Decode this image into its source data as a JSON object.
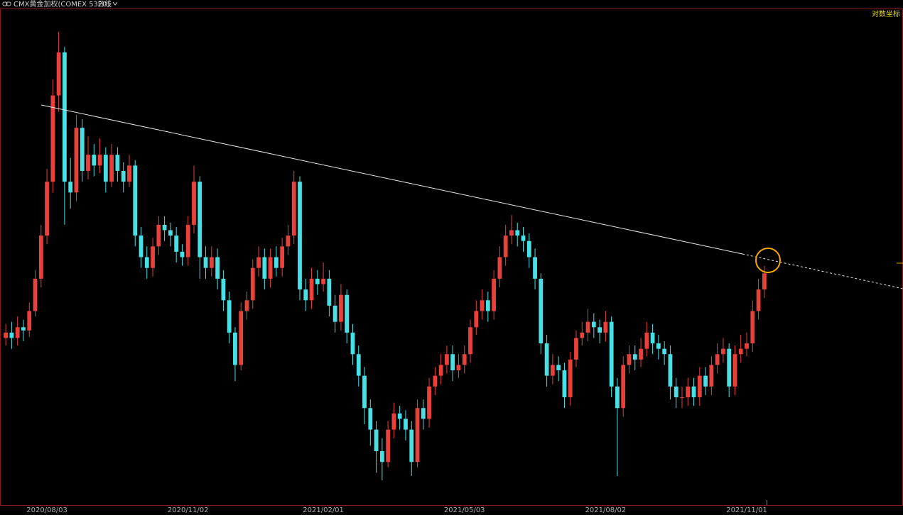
{
  "chart_data": {
    "type": "candlestick",
    "title": "CMX黄金加权(COMEX 5320)",
    "period": "日线",
    "scale_button": "对数坐标",
    "up_color": "#e8413c",
    "down_color": "#48e0e4",
    "ylim": [
      1650,
      2110
    ],
    "categories": [
      null,
      null,
      null,
      null,
      null,
      null,
      null,
      "2020/08/03",
      null,
      null,
      null,
      null,
      null,
      null,
      null,
      null,
      null,
      null,
      null,
      null,
      null,
      null,
      null,
      null,
      null,
      null,
      null,
      null,
      null,
      null,
      null,
      "2020/11/02",
      null,
      null,
      null,
      null,
      null,
      null,
      null,
      null,
      null,
      null,
      null,
      null,
      null,
      null,
      null,
      null,
      null,
      null,
      null,
      null,
      null,
      null,
      "2021/02/01",
      null,
      null,
      null,
      null,
      null,
      null,
      null,
      null,
      null,
      null,
      null,
      null,
      null,
      null,
      null,
      null,
      null,
      null,
      null,
      null,
      null,
      null,
      null,
      "2021/05/03",
      null,
      null,
      null,
      null,
      null,
      null,
      null,
      null,
      null,
      null,
      null,
      null,
      null,
      null,
      null,
      null,
      null,
      null,
      null,
      null,
      null,
      null,
      null,
      "2021/08/02",
      null,
      null,
      null,
      null,
      null,
      null,
      null,
      null,
      null,
      null,
      null,
      null,
      null,
      null,
      null,
      null,
      null,
      null,
      null,
      null,
      null,
      null,
      null,
      "2021/11/01",
      null,
      null,
      null
    ],
    "open": [
      1805,
      1810,
      1805,
      1815,
      1812,
      1830,
      1860,
      1900,
      1950,
      2030,
      2070,
      1950,
      1940,
      2000,
      1960,
      1975,
      1965,
      1975,
      1950,
      1975,
      1960,
      1950,
      1965,
      1900,
      1880,
      1870,
      1890,
      1910,
      1905,
      1900,
      1885,
      1880,
      1910,
      1950,
      1880,
      1870,
      1880,
      1860,
      1840,
      1810,
      1780,
      1830,
      1840,
      1870,
      1880,
      1860,
      1880,
      1870,
      1890,
      1900,
      1950,
      1850,
      1840,
      1860,
      1855,
      1860,
      1835,
      1820,
      1845,
      1810,
      1790,
      1770,
      1740,
      1720,
      1700,
      1690,
      1720,
      1735,
      1730,
      1720,
      1690,
      1740,
      1730,
      1760,
      1770,
      1780,
      1790,
      1775,
      1780,
      1790,
      1815,
      1830,
      1840,
      1830,
      1860,
      1880,
      1900,
      1905,
      1900,
      1895,
      1880,
      1860,
      1800,
      1770,
      1780,
      1775,
      1750,
      1785,
      1805,
      1810,
      1820,
      1815,
      1810,
      1820,
      1760,
      1740,
      1780,
      1790,
      1785,
      1795,
      1810,
      1800,
      1795,
      1790,
      1760,
      1750,
      1750,
      1760,
      1750,
      1770,
      1760,
      1780,
      1790,
      1795,
      1760,
      1790,
      1795,
      1800,
      1830,
      1850
    ],
    "high": [
      1818,
      1820,
      1825,
      1822,
      1838,
      1868,
      1910,
      1962,
      2045,
      2089,
      2075,
      1972,
      2012,
      2008,
      1992,
      1985,
      1990,
      1982,
      1985,
      1982,
      1968,
      1975,
      1970,
      1908,
      1890,
      1898,
      1918,
      1918,
      1912,
      1908,
      1892,
      1918,
      1965,
      1955,
      1890,
      1890,
      1888,
      1868,
      1848,
      1815,
      1838,
      1848,
      1878,
      1890,
      1888,
      1888,
      1890,
      1898,
      1910,
      1960,
      1955,
      1860,
      1870,
      1868,
      1875,
      1868,
      1845,
      1855,
      1850,
      1818,
      1798,
      1778,
      1748,
      1728,
      1712,
      1728,
      1745,
      1742,
      1738,
      1728,
      1748,
      1748,
      1768,
      1778,
      1790,
      1798,
      1798,
      1790,
      1798,
      1822,
      1840,
      1850,
      1848,
      1868,
      1890,
      1910,
      1919,
      1912,
      1908,
      1902,
      1888,
      1865,
      1808,
      1790,
      1788,
      1782,
      1792,
      1812,
      1820,
      1832,
      1828,
      1822,
      1830,
      1825,
      1768,
      1788,
      1798,
      1798,
      1805,
      1820,
      1818,
      1808,
      1802,
      1798,
      1768,
      1760,
      1768,
      1768,
      1778,
      1778,
      1788,
      1800,
      1805,
      1800,
      1798,
      1808,
      1810,
      1840,
      1860,
      1872
    ],
    "low": [
      1798,
      1795,
      1798,
      1802,
      1806,
      1825,
      1852,
      1892,
      1940,
      2015,
      1910,
      1925,
      1932,
      1950,
      1952,
      1955,
      1958,
      1940,
      1945,
      1950,
      1940,
      1945,
      1890,
      1870,
      1860,
      1862,
      1882,
      1895,
      1890,
      1875,
      1872,
      1872,
      1902,
      1860,
      1860,
      1862,
      1850,
      1830,
      1800,
      1765,
      1775,
      1822,
      1832,
      1862,
      1850,
      1852,
      1862,
      1862,
      1882,
      1892,
      1840,
      1830,
      1832,
      1845,
      1848,
      1825,
      1810,
      1812,
      1800,
      1780,
      1760,
      1725,
      1705,
      1680,
      1673,
      1685,
      1712,
      1720,
      1710,
      1677,
      1685,
      1720,
      1722,
      1752,
      1762,
      1772,
      1765,
      1768,
      1772,
      1782,
      1808,
      1822,
      1820,
      1822,
      1852,
      1872,
      1892,
      1890,
      1885,
      1870,
      1850,
      1790,
      1760,
      1762,
      1765,
      1740,
      1742,
      1778,
      1798,
      1802,
      1805,
      1800,
      1802,
      1750,
      1677,
      1732,
      1772,
      1775,
      1778,
      1788,
      1790,
      1785,
      1780,
      1748,
      1740,
      1740,
      1742,
      1742,
      1742,
      1752,
      1752,
      1772,
      1782,
      1750,
      1752,
      1782,
      1788,
      1792,
      1822,
      1842
    ],
    "close": [
      1810,
      1805,
      1815,
      1812,
      1830,
      1860,
      1900,
      1950,
      2030,
      2070,
      1950,
      1940,
      2000,
      1960,
      1975,
      1965,
      1975,
      1950,
      1975,
      1960,
      1950,
      1965,
      1900,
      1880,
      1870,
      1890,
      1910,
      1905,
      1900,
      1885,
      1880,
      1910,
      1950,
      1880,
      1870,
      1880,
      1860,
      1840,
      1810,
      1780,
      1830,
      1840,
      1870,
      1880,
      1860,
      1880,
      1870,
      1890,
      1900,
      1950,
      1850,
      1840,
      1860,
      1855,
      1860,
      1835,
      1820,
      1845,
      1810,
      1790,
      1770,
      1740,
      1720,
      1700,
      1690,
      1720,
      1735,
      1730,
      1720,
      1690,
      1740,
      1730,
      1760,
      1770,
      1780,
      1790,
      1775,
      1780,
      1790,
      1815,
      1830,
      1840,
      1830,
      1860,
      1880,
      1900,
      1905,
      1900,
      1895,
      1880,
      1860,
      1800,
      1770,
      1780,
      1775,
      1750,
      1785,
      1805,
      1810,
      1820,
      1815,
      1810,
      1820,
      1760,
      1740,
      1780,
      1790,
      1785,
      1795,
      1810,
      1800,
      1795,
      1790,
      1760,
      1750,
      1750,
      1760,
      1750,
      1770,
      1760,
      1780,
      1790,
      1795,
      1760,
      1790,
      1795,
      1800,
      1830,
      1850,
      1865
    ]
  }
}
